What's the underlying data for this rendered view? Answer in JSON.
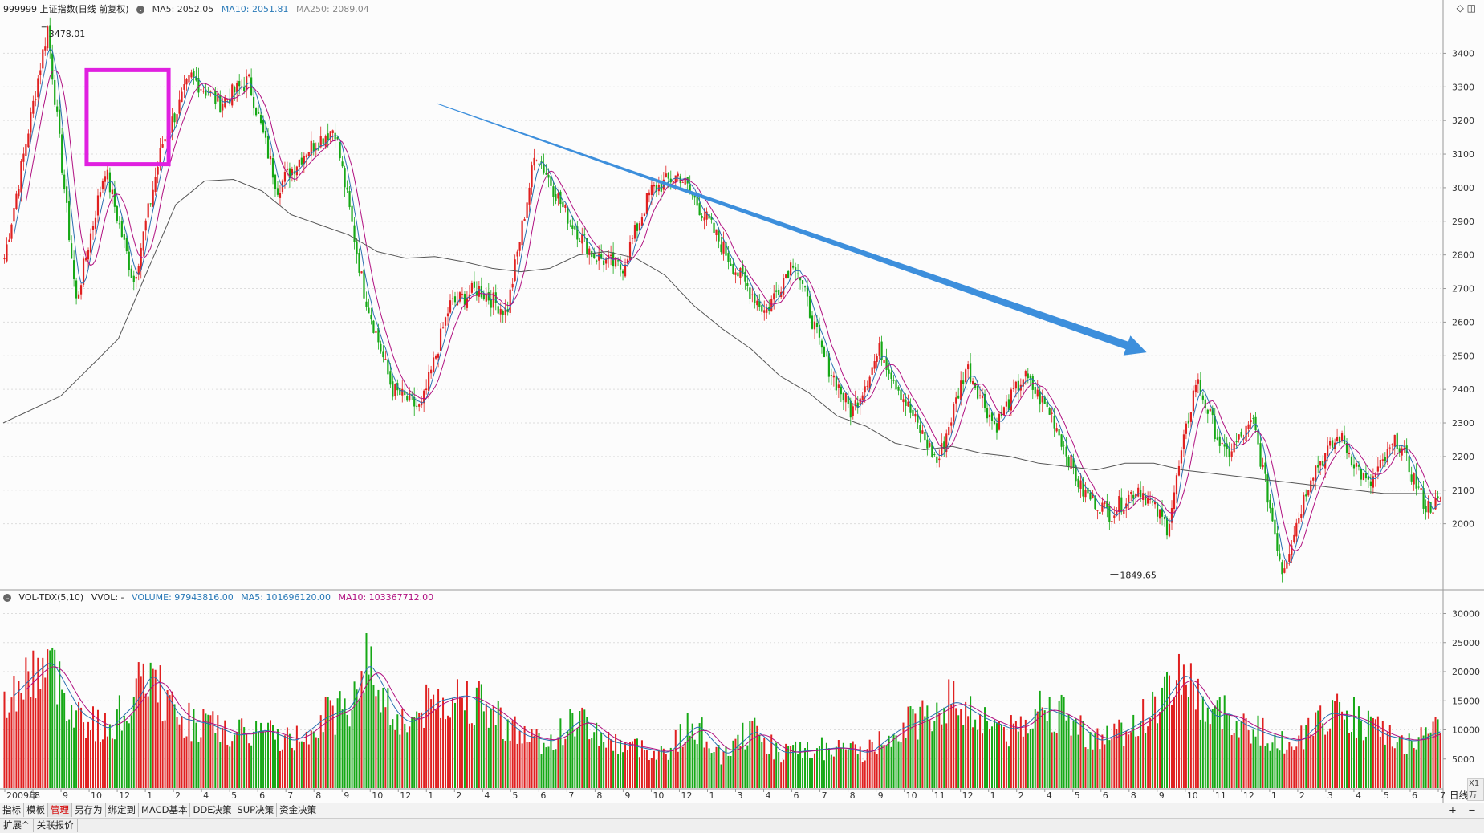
{
  "header": {
    "code_title": "999999 上证指数(日线 前复权)",
    "ma5": "MA5: 2052.05",
    "ma10": "MA10: 2051.81",
    "ma250": "MA250: 2089.04",
    "icon_diamond": "diamond-icon",
    "icon_window": "window-icon"
  },
  "volume_header": {
    "indicator": "VOL-TDX(5,10)",
    "vvol": "VVOL: -",
    "volume": "VOLUME: 97943816.00",
    "ma5": "MA5: 101696120.00",
    "ma10": "MA10: 103367712.00",
    "unit": "X1万"
  },
  "colors": {
    "up": "#e02020",
    "down": "#16a816",
    "ma5": "#2a6fb0",
    "ma10": "#b01080",
    "ma250": "#555555",
    "arrow": "#3d8fdc",
    "box": "#e020e0"
  },
  "annotations": {
    "high_label": "3478.01",
    "low_label": "1849.65"
  },
  "chart_data": [
    {
      "type": "candlestick",
      "title": "999999 上证指数(日线 前复权)",
      "ylim": [
        1820,
        3530
      ],
      "yticks": [
        2000,
        2100,
        2200,
        2300,
        2400,
        2500,
        2600,
        2700,
        2800,
        2900,
        3000,
        3100,
        3200,
        3300,
        3400
      ],
      "grid": true,
      "x_labels": [
        "2009年",
        "8",
        "9",
        "10",
        "12",
        "1",
        "2",
        "4",
        "5",
        "6",
        "7",
        "8",
        "9",
        "10",
        "12",
        "1",
        "2",
        "4",
        "5",
        "6",
        "7",
        "8",
        "9",
        "10",
        "12",
        "1",
        "3",
        "4",
        "6",
        "7",
        "8",
        "9",
        "10",
        "11",
        "12",
        "1",
        "2",
        "4",
        "5",
        "6",
        "8",
        "9",
        "10",
        "11",
        "12",
        "1",
        "2",
        "3",
        "4",
        "5",
        "6",
        "7"
      ],
      "close_path": {
        "x": [
          0,
          3,
          5,
          7,
          9,
          11,
          13,
          15,
          17,
          19,
          21,
          23,
          25,
          27,
          29,
          31,
          33,
          35,
          37,
          39,
          41,
          43,
          45,
          47,
          49,
          51,
          53,
          55,
          57,
          59,
          61,
          63,
          65,
          67,
          69,
          71,
          73,
          75,
          77,
          79,
          81,
          83,
          85,
          87,
          89,
          91,
          93,
          95,
          97,
          99,
          100
        ],
        "y": [
          2790,
          3478,
          2660,
          3060,
          2720,
          3130,
          3330,
          3250,
          3320,
          3000,
          3110,
          3180,
          2700,
          2400,
          2340,
          2650,
          2700,
          2630,
          3110,
          2930,
          2800,
          2760,
          2990,
          3040,
          2900,
          2750,
          2630,
          2790,
          2500,
          2330,
          2520,
          2340,
          2180,
          2470,
          2290,
          2440,
          2320,
          2100,
          2030,
          2110,
          1990,
          2430,
          2200,
          2300,
          1860,
          2150,
          2260,
          2110,
          2250,
          2050,
          2060
        ]
      },
      "ma250_path": {
        "x": [
          0,
          4,
          8,
          12,
          14,
          16,
          18,
          20,
          22,
          24,
          26,
          28,
          30,
          32,
          34,
          36,
          38,
          40,
          42,
          44,
          46,
          48,
          50,
          52,
          54,
          56,
          58,
          60,
          62,
          64,
          66,
          68,
          70,
          72,
          74,
          76,
          78,
          80,
          82,
          84,
          86,
          88,
          90,
          92,
          94,
          96,
          98,
          100
        ],
        "y": [
          2300,
          2380,
          2550,
          2950,
          3020,
          3025,
          2990,
          2920,
          2890,
          2860,
          2810,
          2790,
          2795,
          2780,
          2760,
          2750,
          2760,
          2800,
          2810,
          2790,
          2740,
          2650,
          2580,
          2520,
          2440,
          2390,
          2320,
          2290,
          2240,
          2220,
          2230,
          2210,
          2200,
          2180,
          2170,
          2160,
          2180,
          2180,
          2160,
          2150,
          2140,
          2130,
          2120,
          2110,
          2100,
          2090,
          2090,
          2089
        ]
      },
      "legend": [
        "MA5: 2052.05",
        "MA10: 2051.81",
        "MA250: 2089.04"
      ]
    },
    {
      "type": "bar",
      "title": "VOL-TDX(5,10)",
      "ylim": [
        0,
        32000
      ],
      "yticks": [
        5000,
        10000,
        15000,
        20000,
        25000,
        30000
      ],
      "unit": "X1万",
      "volume_path": {
        "x": [
          0,
          2,
          3,
          5,
          7,
          9,
          10,
          12,
          14,
          16,
          18,
          20,
          22,
          24,
          25,
          26,
          27,
          28,
          30,
          32,
          34,
          36,
          38,
          40,
          42,
          44,
          46,
          48,
          50,
          52,
          54,
          56,
          58,
          60,
          62,
          64,
          66,
          68,
          70,
          71,
          72,
          74,
          76,
          78,
          80,
          82,
          84,
          85,
          86,
          88,
          90,
          92,
          94,
          96,
          98,
          100
        ],
        "y": [
          15000,
          20000,
          22000,
          13000,
          10000,
          15000,
          20000,
          12000,
          11000,
          9000,
          10000,
          8000,
          12000,
          14000,
          22000,
          18000,
          13000,
          11000,
          15000,
          16000,
          13000,
          9000,
          8000,
          12000,
          8000,
          7000,
          6000,
          11000,
          5500,
          10000,
          6000,
          6500,
          7000,
          6000,
          10000,
          12000,
          15000,
          12000,
          10000,
          11000,
          14000,
          12000,
          8000,
          10000,
          13000,
          20000,
          12000,
          13000,
          11000,
          9000,
          8000,
          13000,
          12000,
          9000,
          8000,
          10000
        ]
      }
    }
  ],
  "toolbar": {
    "tabs": [
      "指标",
      "模板",
      "管理",
      "另存为",
      "绑定到",
      "MACD基本",
      "DDE决策",
      "SUP决策",
      "资金决策"
    ],
    "active_index": 2,
    "period": "日线",
    "plus": "+",
    "minus": "−"
  },
  "toolbar2": {
    "tabs": [
      "扩展^",
      "关联报价"
    ]
  }
}
